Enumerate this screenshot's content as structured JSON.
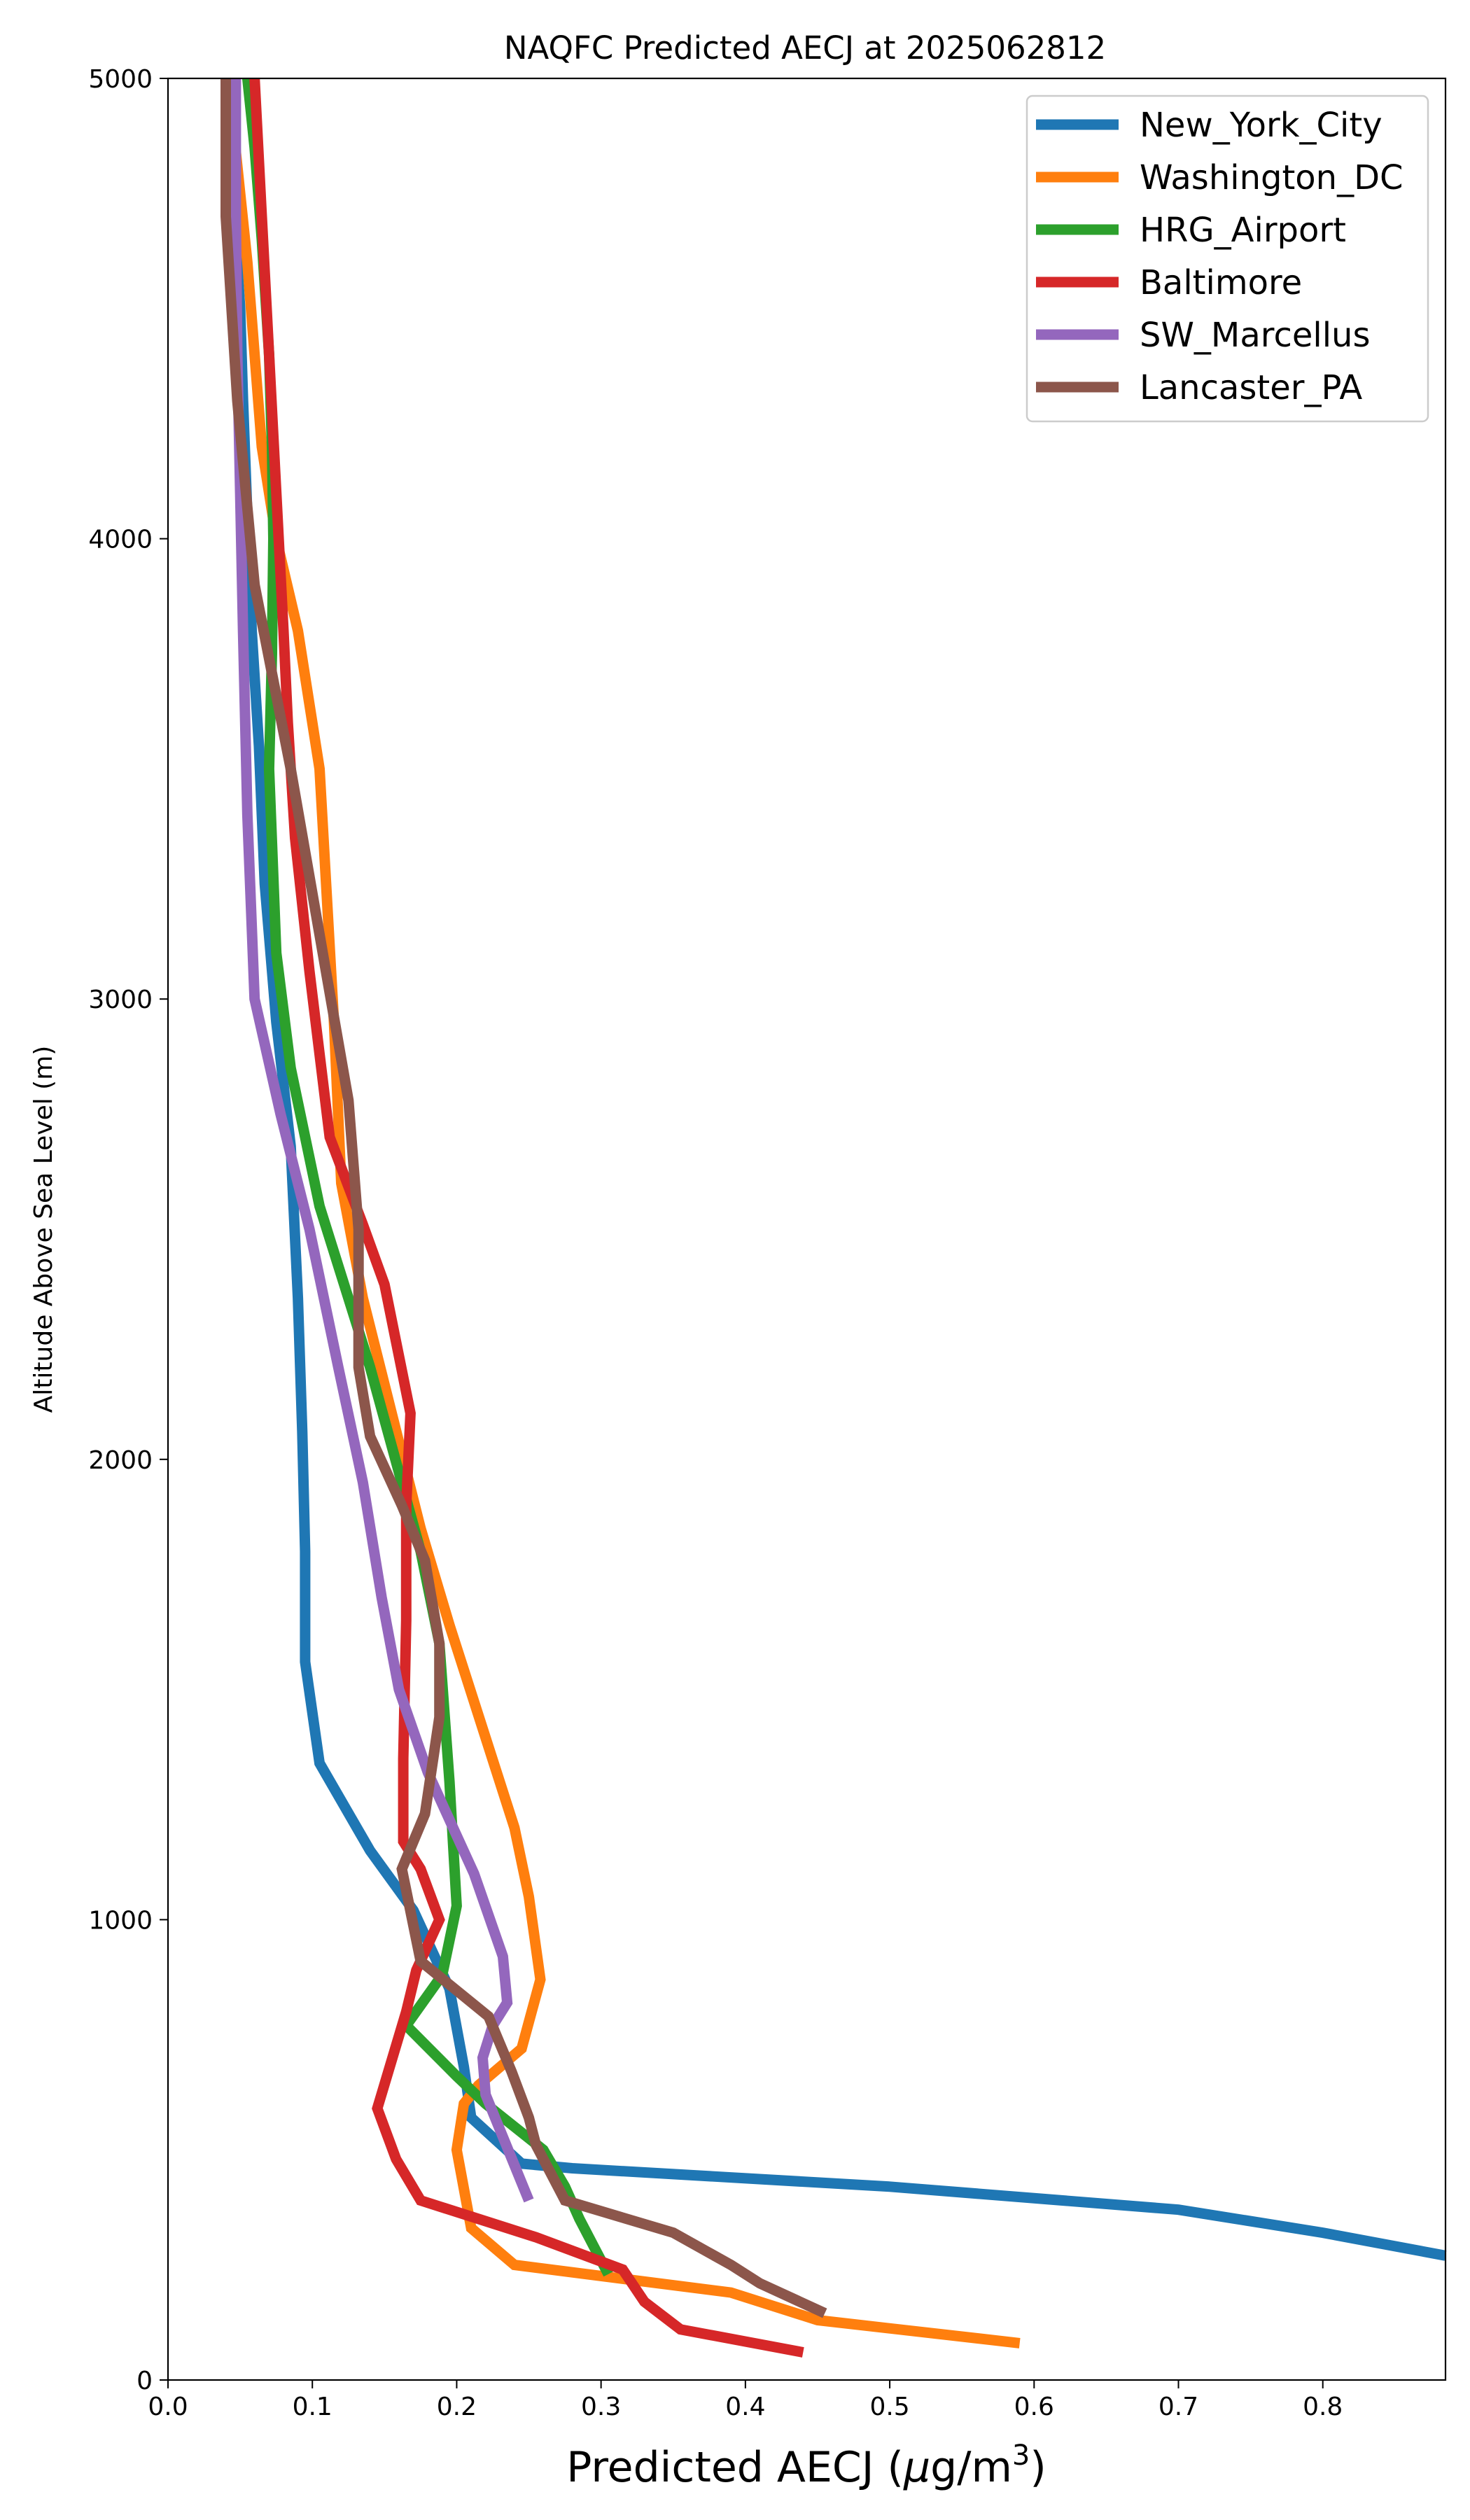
{
  "chart_data": {
    "type": "line",
    "title": "NAQFC Predicted AECJ at 2025062812",
    "xlabel_prefix": "Predicted AECJ (",
    "xlabel_mu": "μ",
    "xlabel_units": "g/m",
    "xlabel_sup": "3",
    "xlabel_suffix": ")",
    "ylabel": "Altitude Above Sea Level (m)",
    "xlim": [
      0.0,
      0.885
    ],
    "ylim": [
      0,
      5000
    ],
    "xticks": [
      0.0,
      0.1,
      0.2,
      0.3,
      0.4,
      0.5,
      0.6,
      0.7,
      0.8
    ],
    "xtick_labels": [
      "0.0",
      "0.1",
      "0.2",
      "0.3",
      "0.4",
      "0.5",
      "0.6",
      "0.7",
      "0.8"
    ],
    "yticks": [
      0,
      1000,
      2000,
      3000,
      4000,
      5000
    ],
    "ytick_labels": [
      "0",
      "1000",
      "2000",
      "3000",
      "4000",
      "5000"
    ],
    "grid": false,
    "legend_position": "top-right",
    "series": [
      {
        "name": "New_York_City",
        "color": "#1f77b4",
        "x": [
          0.885,
          0.8,
          0.7,
          0.5,
          0.28,
          0.245,
          0.21,
          0.205,
          0.195,
          0.17,
          0.14,
          0.105,
          0.095,
          0.095,
          0.093,
          0.09,
          0.085,
          0.075,
          0.067,
          0.063,
          0.058,
          0.055,
          0.052,
          0.05,
          0.047,
          0.043,
          0.04
        ],
        "y": [
          270,
          320,
          370,
          420,
          460,
          470,
          570,
          680,
          850,
          1020,
          1150,
          1340,
          1560,
          1800,
          2060,
          2350,
          2680,
          2950,
          3250,
          3550,
          3800,
          4050,
          4300,
          4500,
          4650,
          4800,
          5000
        ]
      },
      {
        "name": "Washington_DC",
        "color": "#ff7f0e",
        "x": [
          0.59,
          0.45,
          0.39,
          0.24,
          0.21,
          0.2,
          0.205,
          0.215,
          0.245,
          0.258,
          0.25,
          0.24,
          0.195,
          0.175,
          0.155,
          0.135,
          0.12,
          0.115,
          0.105,
          0.09,
          0.075,
          0.065,
          0.06,
          0.055,
          0.05,
          0.045,
          0.04
        ],
        "y": [
          80,
          130,
          190,
          250,
          330,
          500,
          600,
          640,
          720,
          870,
          1050,
          1200,
          1640,
          1850,
          2100,
          2350,
          2600,
          2950,
          3500,
          3800,
          4000,
          4200,
          4400,
          4600,
          4750,
          4900,
          5000
        ]
      },
      {
        "name": "HRG_Airport",
        "color": "#2ca02c",
        "x": [
          0.305,
          0.295,
          0.285,
          0.275,
          0.26,
          0.22,
          0.2,
          0.165,
          0.19,
          0.2,
          0.195,
          0.188,
          0.175,
          0.14,
          0.105,
          0.085,
          0.075,
          0.07,
          0.072,
          0.073,
          0.072,
          0.07,
          0.065,
          0.06,
          0.055
        ],
        "y": [
          230,
          290,
          350,
          420,
          500,
          600,
          660,
          770,
          880,
          1030,
          1300,
          1600,
          1800,
          2200,
          2550,
          2850,
          3100,
          3500,
          3750,
          4000,
          4200,
          4400,
          4650,
          4850,
          5000
        ]
      },
      {
        "name": "Baltimore",
        "color": "#d62728",
        "x": [
          0.44,
          0.355,
          0.33,
          0.315,
          0.255,
          0.175,
          0.158,
          0.145,
          0.165,
          0.172,
          0.188,
          0.175,
          0.163,
          0.163,
          0.165,
          0.165,
          0.168,
          0.15,
          0.135,
          0.112,
          0.098,
          0.088,
          0.083,
          0.08,
          0.075,
          0.07,
          0.065,
          0.06
        ],
        "y": [
          60,
          110,
          170,
          240,
          310,
          390,
          480,
          590,
          800,
          890,
          1000,
          1110,
          1170,
          1350,
          1650,
          1900,
          2100,
          2380,
          2510,
          2700,
          3060,
          3350,
          3600,
          3800,
          4100,
          4400,
          4700,
          5000
        ]
      },
      {
        "name": "SW_Marcellus",
        "color": "#9467bd",
        "x": [
          0.25,
          0.22,
          0.218,
          0.225,
          0.235,
          0.232,
          0.212,
          0.18,
          0.16,
          0.148,
          0.135,
          0.118,
          0.098,
          0.078,
          0.06,
          0.055,
          0.052,
          0.05,
          0.048,
          0.047,
          0.047
        ],
        "y": [
          390,
          620,
          700,
          770,
          820,
          920,
          1100,
          1320,
          1500,
          1700,
          1950,
          2200,
          2500,
          2750,
          3000,
          3400,
          3800,
          4100,
          4400,
          4700,
          5000
        ]
      },
      {
        "name": "Lancaster_PA",
        "color": "#8c564b",
        "x": [
          0.455,
          0.41,
          0.39,
          0.35,
          0.275,
          0.255,
          0.25,
          0.238,
          0.222,
          0.175,
          0.162,
          0.178,
          0.188,
          0.188,
          0.178,
          0.162,
          0.14,
          0.132,
          0.132,
          0.125,
          0.11,
          0.085,
          0.06,
          0.048,
          0.04,
          0.04
        ],
        "y": [
          145,
          210,
          250,
          320,
          390,
          510,
          570,
          670,
          790,
          910,
          1110,
          1230,
          1440,
          1600,
          1780,
          1900,
          2050,
          2200,
          2500,
          2780,
          3050,
          3500,
          3900,
          4300,
          4700,
          5000
        ]
      }
    ]
  }
}
